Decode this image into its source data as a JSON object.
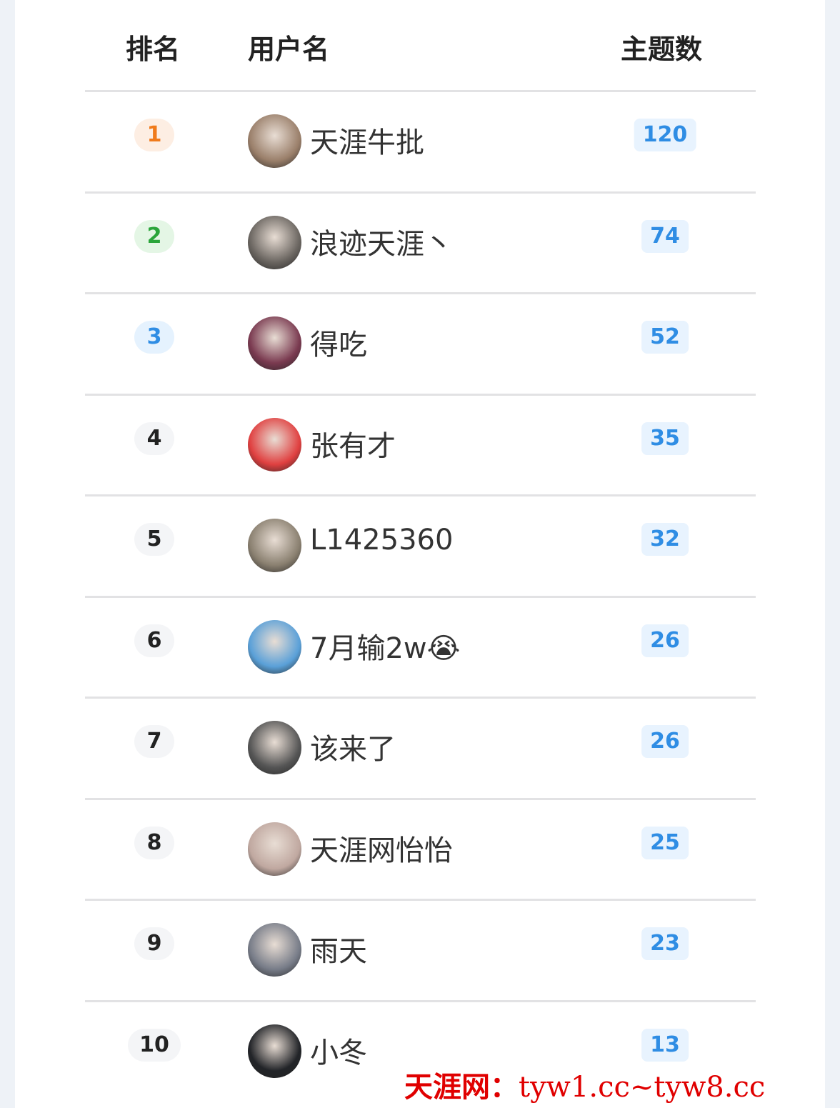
{
  "header": {
    "rank": "排名",
    "user": "用户名",
    "count": "主题数"
  },
  "rank_colors": {
    "1": {
      "bg": "#fdeee3",
      "fg": "#f07b1c"
    },
    "2": {
      "bg": "#e4f6e5",
      "fg": "#2aa53a"
    },
    "3": {
      "bg": "#e5f2fe",
      "fg": "#2f8de4"
    }
  },
  "rows": [
    {
      "rank": "1",
      "name": "天涯牛批",
      "count": "120",
      "avatar": "#9a7f6a"
    },
    {
      "rank": "2",
      "name": "浪迹天涯丶",
      "count": "74",
      "avatar": "#6a6560"
    },
    {
      "rank": "3",
      "name": "得吃",
      "count": "52",
      "avatar": "#7a3a50"
    },
    {
      "rank": "4",
      "name": "张有才",
      "count": "35",
      "avatar": "#e04040"
    },
    {
      "rank": "5",
      "name": "L1425360",
      "count": "32",
      "avatar": "#8a8070"
    },
    {
      "rank": "6",
      "name": "7月输2w😭",
      "count": "26",
      "avatar": "#5aa0d8"
    },
    {
      "rank": "7",
      "name": "该来了",
      "count": "26",
      "avatar": "#555555"
    },
    {
      "rank": "8",
      "name": "天涯网怡怡",
      "count": "25",
      "avatar": "#c0a8a0"
    },
    {
      "rank": "9",
      "name": "雨天",
      "count": "23",
      "avatar": "#777c88"
    },
    {
      "rank": "10",
      "name": "小冬",
      "count": "13",
      "avatar": "#222428"
    }
  ],
  "watermark": {
    "site": "天涯网：",
    "urls": "tyw1.cc~tyw8.cc"
  }
}
